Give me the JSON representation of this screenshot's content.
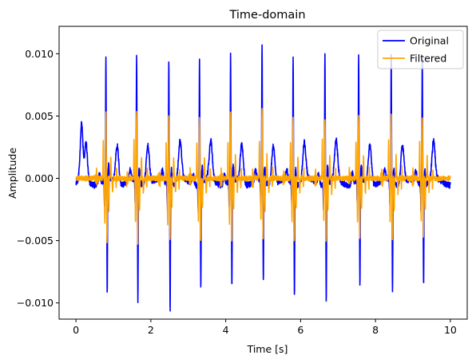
{
  "chart_data": {
    "type": "line",
    "title": "Time-domain",
    "xlabel": "Time [s]",
    "ylabel": "Amplitude",
    "xlim": [
      -0.45,
      10.45
    ],
    "ylim": [
      -0.0113,
      0.0122
    ],
    "xticks": [
      0,
      2,
      4,
      6,
      8,
      10
    ],
    "xtick_labels": [
      "0",
      "2",
      "4",
      "6",
      "8",
      "10"
    ],
    "yticks": [
      -0.01,
      -0.005,
      0.0,
      0.005,
      0.01
    ],
    "ytick_labels": [
      "−0.010",
      "−0.005",
      "0.000",
      "0.005",
      "0.010"
    ],
    "grid": false,
    "legend_position": "top-right",
    "duration_s": 10,
    "series": [
      {
        "name": "Original",
        "color": "#0000ff",
        "description": "ECG-like signal with repeating beats",
        "beats": [
          {
            "t": 0.15,
            "r": 0.0044,
            "s": -0.0001
          },
          {
            "t": 0.8,
            "r": 0.0099,
            "s": -0.0092
          },
          {
            "t": 1.62,
            "r": 0.0101,
            "s": -0.0097
          },
          {
            "t": 2.48,
            "r": 0.01,
            "s": -0.0103
          },
          {
            "t": 3.3,
            "r": 0.01,
            "s": -0.0088
          },
          {
            "t": 4.13,
            "r": 0.0101,
            "s": -0.0086
          },
          {
            "t": 4.97,
            "r": 0.0111,
            "s": -0.0082
          },
          {
            "t": 5.8,
            "r": 0.0101,
            "s": -0.0092
          },
          {
            "t": 6.65,
            "r": 0.0105,
            "s": -0.0096
          },
          {
            "t": 7.55,
            "r": 0.0101,
            "s": -0.0087
          },
          {
            "t": 8.42,
            "r": 0.0101,
            "s": -0.009
          },
          {
            "t": 9.25,
            "r": 0.0101,
            "s": -0.0081
          }
        ]
      },
      {
        "name": "Filtered",
        "color": "#ffa500",
        "description": "Band-pass filtered version of the signal",
        "beats": [
          {
            "t": 0.8,
            "r": 0.0055,
            "s": -0.0052
          },
          {
            "t": 1.62,
            "r": 0.0053,
            "s": -0.0051
          },
          {
            "t": 2.48,
            "r": 0.0049,
            "s": -0.0052
          },
          {
            "t": 3.3,
            "r": 0.0048,
            "s": -0.005
          },
          {
            "t": 4.13,
            "r": 0.0052,
            "s": -0.0051
          },
          {
            "t": 4.97,
            "r": 0.0055,
            "s": -0.005
          },
          {
            "t": 5.8,
            "r": 0.0049,
            "s": -0.0049
          },
          {
            "t": 6.65,
            "r": 0.0047,
            "s": -0.0052
          },
          {
            "t": 7.55,
            "r": 0.0051,
            "s": -0.005
          },
          {
            "t": 8.42,
            "r": 0.005,
            "s": -0.0051
          },
          {
            "t": 9.25,
            "r": 0.0049,
            "s": -0.0048
          }
        ]
      }
    ]
  }
}
